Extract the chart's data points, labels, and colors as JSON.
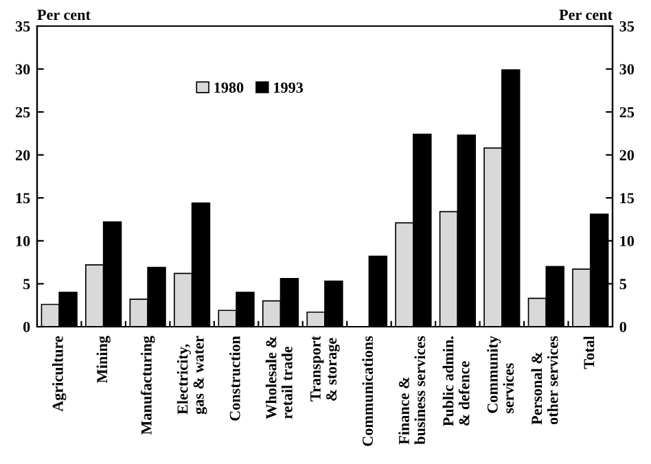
{
  "chart_data": {
    "type": "bar",
    "ylabel": "Per cent",
    "y2label": "Per cent",
    "categories": [
      "Agriculture",
      "Mining",
      "Manufacturing",
      "Electricity,\ngas & water",
      "Construction",
      "Wholesale &\nretail trade",
      "Transport\n& storage",
      "Communications",
      "Finance &\nbusiness services",
      "Public admin.\n& defence",
      "Community\nservices",
      "Personal &\nother services",
      "Total"
    ],
    "series": [
      {
        "name": "1980",
        "color": "#d9d9d9",
        "values": [
          2.6,
          7.2,
          3.2,
          6.2,
          1.9,
          3.0,
          1.7,
          null,
          12.1,
          13.4,
          20.8,
          3.3,
          6.7
        ]
      },
      {
        "name": "1993",
        "color": "#000000",
        "values": [
          4.0,
          12.2,
          6.9,
          14.4,
          4.0,
          5.6,
          5.3,
          8.2,
          22.4,
          22.3,
          29.9,
          7.0,
          13.1
        ]
      }
    ],
    "ylim": [
      0,
      35
    ],
    "yticks": [
      0,
      5,
      10,
      15,
      20,
      25,
      30,
      35
    ],
    "y2lim": [
      0,
      35
    ],
    "y2ticks": [
      0,
      5,
      10,
      15,
      20,
      25,
      30,
      35
    ],
    "legend": "top",
    "grid": false
  }
}
